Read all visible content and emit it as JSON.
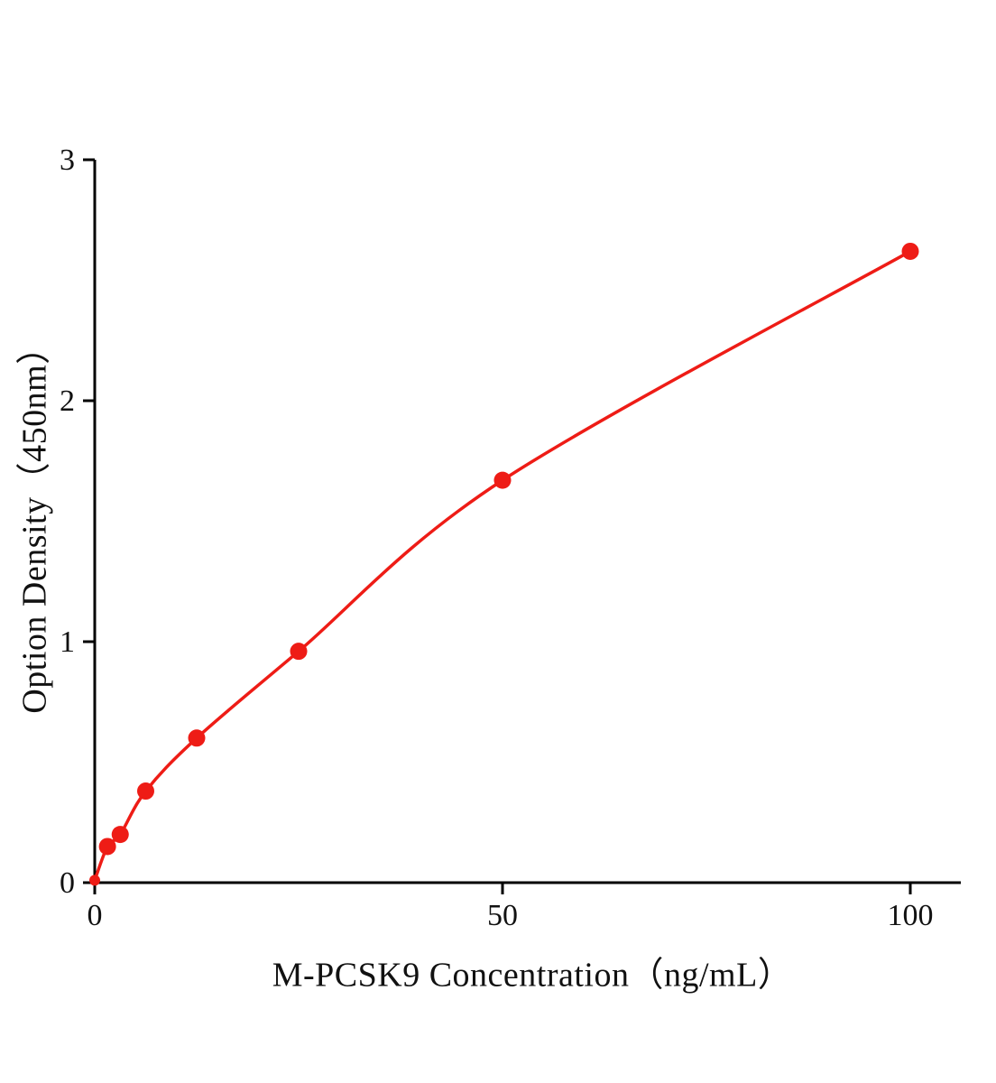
{
  "chart_data": {
    "type": "scatter",
    "title": "",
    "xlabel": "M-PCSK9 Concentration（ng/mL）",
    "ylabel": "Option Density（450nm）",
    "x": [
      0,
      1.563,
      3.125,
      6.25,
      12.5,
      25,
      50,
      100
    ],
    "y": [
      0.01,
      0.15,
      0.2,
      0.38,
      0.6,
      0.96,
      1.67,
      2.62
    ],
    "x_ticks": [
      0,
      50,
      100
    ],
    "y_ticks": [
      0,
      1,
      2,
      3
    ],
    "xlim": [
      0,
      106
    ],
    "ylim": [
      0,
      3
    ],
    "grid": false,
    "legend": null,
    "line_color": "#ee1c16",
    "marker_color": "#ee1c16",
    "axis_color": "#000000",
    "tick_label_color": "#111111",
    "curve_style": "smooth-fit-line-through-points"
  }
}
